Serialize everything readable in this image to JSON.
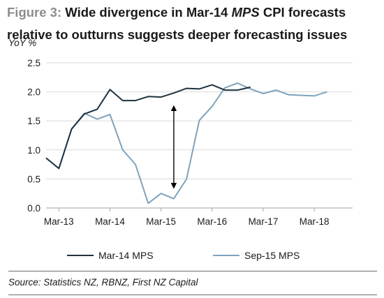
{
  "figure": {
    "label": "Figure 3:",
    "title_part1": "Wide divergence in Mar-14 ",
    "title_em": "MPS",
    "title_part2": " CPI forecasts relative to outturns suggests deeper forecasting issues",
    "units": "YoY %",
    "source": "Source: Statistics NZ, RBNZ, First NZ Capital"
  },
  "chart_data": {
    "type": "line",
    "ylabel": "YoY %",
    "ylim": [
      0,
      2.5
    ],
    "yticks": [
      "0.0",
      "0.5",
      "1.0",
      "1.5",
      "2.0",
      "2.5"
    ],
    "yticks_values": [
      0,
      0.5,
      1,
      1.5,
      2,
      2.5
    ],
    "xticks": [
      "Mar-13",
      "Mar-14",
      "Mar-15",
      "Mar-16",
      "Mar-17",
      "Mar-18"
    ],
    "xlim": [
      "Dec-12",
      "Dec-18"
    ],
    "grid": "horizontal",
    "legend_position": "bottom",
    "colors": {
      "mar14": "#1f3340",
      "sep15": "#7ea3bc",
      "grid": "#d9d9d9",
      "axis": "#a6a6a6",
      "annotation": "#000000"
    },
    "series": [
      {
        "name": "Mar-14 MPS",
        "x": [
          "Dec-12",
          "Mar-13",
          "Jun-13",
          "Sep-13",
          "Dec-13",
          "Mar-14",
          "Jun-14",
          "Sep-14",
          "Dec-14",
          "Mar-15",
          "Jun-15",
          "Sep-15",
          "Dec-15",
          "Mar-16",
          "Jun-16",
          "Sep-16",
          "Dec-16",
          "Mar-17"
        ],
        "values": [
          0.86,
          0.68,
          1.36,
          1.62,
          1.7,
          2.04,
          1.85,
          1.85,
          1.92,
          1.91,
          1.98,
          2.06,
          2.05,
          2.12,
          2.03,
          2.03,
          2.08,
          null
        ]
      },
      {
        "name": "Sep-15 MPS",
        "x": [
          "Dec-12",
          "Mar-13",
          "Jun-13",
          "Sep-13",
          "Dec-13",
          "Mar-14",
          "Jun-14",
          "Sep-14",
          "Dec-14",
          "Mar-15",
          "Jun-15",
          "Sep-15",
          "Dec-15",
          "Mar-16",
          "Jun-16",
          "Sep-16",
          "Dec-16",
          "Mar-17",
          "Jun-17",
          "Sep-17",
          "Dec-17",
          "Mar-18",
          "Jun-18",
          "Sep-18"
        ],
        "values": [
          0.86,
          0.68,
          1.36,
          1.63,
          1.53,
          1.61,
          1.0,
          0.75,
          0.08,
          0.25,
          0.16,
          0.5,
          1.51,
          1.75,
          2.07,
          2.15,
          2.05,
          1.97,
          2.03,
          1.95,
          1.94,
          1.93,
          2.0,
          null
        ]
      }
    ],
    "annotation": {
      "type": "double-arrow",
      "x": "Jun-15",
      "from": 1.75,
      "to": 0.35
    }
  }
}
